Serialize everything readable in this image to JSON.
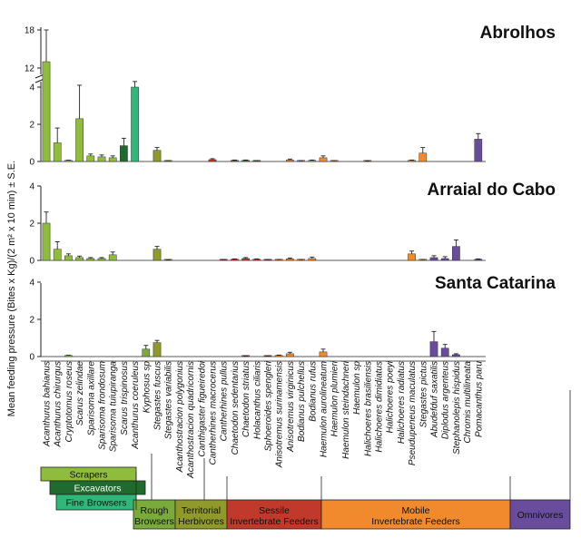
{
  "chart_data": {
    "type": "bar",
    "ylabel": "Mean feeding pressure  (Bites x Kg)/(2 m² x 10 min) ± S.E.",
    "categories": [
      "Acanthurus bahianus",
      "Acanthurus chirurgus",
      "Cryptotomus roseus",
      "Scarus zelindae",
      "Sparisoma axillare",
      "Sparisoma frondosum",
      "Sparisoma tuiupiranga",
      "Scarus trispinosus",
      "Acanthurus coeruleus",
      "Kyphosus sp",
      "Stegastes fuscus",
      "Stegastes variabilis",
      "Acanthostracion polygonius",
      "Acanthostracion quadricornis",
      "Canthigaster figueiredoi",
      "Cantherhines macrocerus",
      "Cantherhines pullus",
      "Chaetodon sedentarius",
      "Chaetodon striatus",
      "Holacanthus ciliaris",
      "Sphoeroides spengleri",
      "Anisotremus surinamensis",
      "Anisotremus virginicus",
      "Bodianus pulchellus",
      "Bodianus rufus",
      "Haemulon aurolineatum",
      "Haemulon plumieri",
      "Haemulon steindachneri",
      "Haemulon sp",
      "Halichoeres brasiliensis",
      "Halichoeres dimidiatus",
      "Halichoeres poeyi",
      "Halichoeres radiatus",
      "Pseudupeneus maculatus",
      "Stegastes pictus",
      "Abudefduf saxatilis",
      "Diplodus argenteus",
      "Stephanolepis hispidus",
      "Chromis multilineata",
      "Pomacanthus paru"
    ],
    "colors": [
      "#8fbc3c",
      "#8fbc3c",
      "#8fbc3c",
      "#8fbc3c",
      "#8fbc3c",
      "#8fbc3c",
      "#8fbc3c",
      "#1f6b2e",
      "#2fb87a",
      "#79aa3a",
      "#8f9a2a",
      "#8f9a2a",
      "#c0392b",
      "#c0392b",
      "#c0392b",
      "#c0392b",
      "#c0392b",
      "#c0392b",
      "#c0392b",
      "#c0392b",
      "#c0392b",
      "#f08a2c",
      "#f08a2c",
      "#f08a2c",
      "#f08a2c",
      "#f08a2c",
      "#f08a2c",
      "#f08a2c",
      "#f08a2c",
      "#f08a2c",
      "#f08a2c",
      "#f08a2c",
      "#f08a2c",
      "#f08a2c",
      "#f08a2c",
      "#6a4c9c",
      "#6a4c9c",
      "#6a4c9c",
      "#6a4c9c",
      "#6a4c9c"
    ],
    "panels": [
      {
        "title": "Abrolhos",
        "yticks": [
          "0",
          "2",
          "4",
          "12",
          "18"
        ],
        "broken_axis": true,
        "values": [
          13,
          1.0,
          0.05,
          2.3,
          0.3,
          0.25,
          0.2,
          0.85,
          4.0,
          0.0,
          0.6,
          0.03,
          0,
          0,
          0,
          0.1,
          0,
          0.05,
          0.05,
          0.03,
          0,
          0,
          0.08,
          0.03,
          0.05,
          0.2,
          0.03,
          0,
          0,
          0.02,
          0,
          0,
          0,
          0.05,
          0.45,
          0,
          0,
          0,
          0,
          1.2
        ],
        "errors": [
          5.0,
          0.8,
          0.02,
          1.8,
          0.1,
          0.1,
          0.1,
          0.4,
          0.3,
          0,
          0.15,
          0.02,
          0,
          0,
          0,
          0.05,
          0,
          0.03,
          0.03,
          0.02,
          0,
          0,
          0.05,
          0.02,
          0.03,
          0.1,
          0.02,
          0,
          0,
          0.01,
          0,
          0,
          0,
          0.03,
          0.3,
          0,
          0,
          0,
          0,
          0.3
        ]
      },
      {
        "title": "Arraial do Cabo",
        "yticks": [
          "0",
          "2",
          "4"
        ],
        "values": [
          2.0,
          0.6,
          0.25,
          0.15,
          0.1,
          0.1,
          0.3,
          0,
          0,
          0,
          0.6,
          0.02,
          0,
          0,
          0,
          0,
          0.03,
          0.05,
          0.1,
          0.05,
          0.03,
          0.03,
          0.08,
          0.03,
          0.1,
          0,
          0,
          0,
          0,
          0,
          0,
          0,
          0,
          0.35,
          0.03,
          0.15,
          0.1,
          0.75,
          0,
          0.05
        ],
        "errors": [
          0.6,
          0.4,
          0.1,
          0.08,
          0.05,
          0.05,
          0.15,
          0,
          0,
          0,
          0.15,
          0.01,
          0,
          0,
          0,
          0,
          0.02,
          0.03,
          0.05,
          0.03,
          0.02,
          0.02,
          0.05,
          0.02,
          0.08,
          0,
          0,
          0,
          0,
          0,
          0,
          0,
          0,
          0.15,
          0.02,
          0.1,
          0.1,
          0.35,
          0,
          0.03
        ]
      },
      {
        "title": "Santa Catarina",
        "yticks": [
          "0",
          "2",
          "4"
        ],
        "values": [
          0,
          0,
          0.05,
          0,
          0,
          0,
          0,
          0,
          0,
          0.4,
          0.75,
          0,
          0,
          0,
          0,
          0,
          0,
          0,
          0.02,
          0,
          0.02,
          0.05,
          0.15,
          0,
          0,
          0.25,
          0,
          0,
          0,
          0,
          0,
          0,
          0,
          0,
          0,
          0.8,
          0.45,
          0.1,
          0,
          0
        ],
        "errors": [
          0,
          0,
          0.02,
          0,
          0,
          0,
          0,
          0,
          0,
          0.2,
          0.12,
          0,
          0,
          0,
          0,
          0,
          0,
          0,
          0.01,
          0,
          0.01,
          0.03,
          0.08,
          0,
          0,
          0.15,
          0,
          0,
          0,
          0,
          0,
          0,
          0,
          0,
          0,
          0.55,
          0.2,
          0.05,
          0,
          0
        ]
      }
    ],
    "groups": [
      {
        "label": "Scrapers",
        "color": "#8fbc3c",
        "text_color": "#111111"
      },
      {
        "label": "Excavators",
        "color": "#1f6b2e",
        "text_color": "#ffffff"
      },
      {
        "label": "Fine Browsers",
        "color": "#2fb87a",
        "text_color": "#111111"
      },
      {
        "label": "Rough Browsers",
        "color": "#79aa3a",
        "text_color": "#111111"
      },
      {
        "label": "Territorial Herbivores",
        "color": "#8f9a2a",
        "text_color": "#111111"
      },
      {
        "label": "Sessile Invertebrate Feeders",
        "color": "#c0392b",
        "text_color": "#111111"
      },
      {
        "label": "Mobile Invertebrate Feeders",
        "color": "#f08a2c",
        "text_color": "#111111"
      },
      {
        "label": "Omnivores",
        "color": "#6a4c9c",
        "text_color": "#111111"
      }
    ]
  }
}
